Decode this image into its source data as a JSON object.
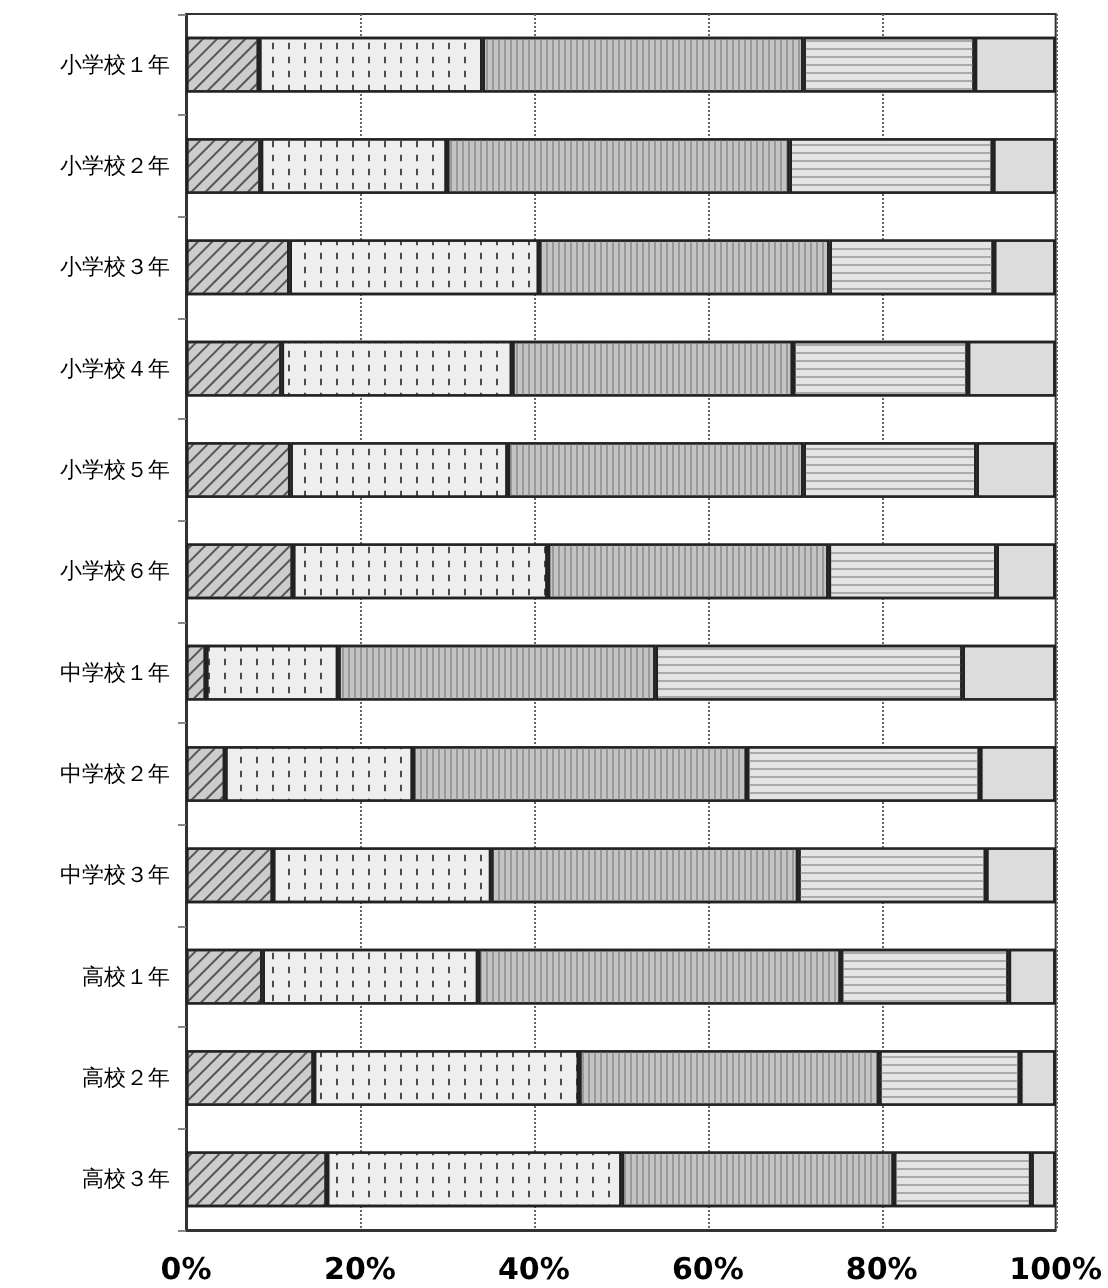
{
  "chart_data": {
    "type": "bar",
    "orientation": "horizontal",
    "stacked": true,
    "grid": "x",
    "categories": [
      "小学校１年",
      "小学校２年",
      "小学校３年",
      "小学校４年",
      "小学校５年",
      "小学校６年",
      "中学校１年",
      "中学校２年",
      "中学校３年",
      "高校１年",
      "高校２年",
      "高校３年"
    ],
    "xlim": [
      0,
      100
    ],
    "xticks": [
      {
        "value": 0,
        "label": "0%"
      },
      {
        "value": 20,
        "label": "20%"
      },
      {
        "value": 40,
        "label": "40%"
      },
      {
        "value": 60,
        "label": "60%"
      },
      {
        "value": 80,
        "label": "80%"
      },
      {
        "value": 100,
        "label": "100%"
      }
    ],
    "series": [
      {
        "color": "#cccccc",
        "values": [
          8.4,
          8.6,
          11.9,
          11.0,
          12.0,
          12.3,
          2.3,
          4.5,
          10.0,
          8.8,
          14.7,
          16.2
        ]
      },
      {
        "color": "#eeeeee",
        "values": [
          25.7,
          21.4,
          28.7,
          26.5,
          25.0,
          29.3,
          15.2,
          21.6,
          25.1,
          24.8,
          30.5,
          33.9
        ]
      },
      {
        "color": "#c4c4c4",
        "values": [
          36.9,
          39.4,
          33.4,
          32.3,
          34.0,
          32.3,
          36.5,
          38.4,
          35.3,
          41.7,
          34.5,
          31.3
        ]
      },
      {
        "color": "#e4e4e4",
        "values": [
          19.7,
          23.4,
          18.9,
          20.1,
          19.9,
          19.3,
          35.3,
          26.8,
          21.6,
          19.3,
          16.2,
          15.8
        ]
      },
      {
        "color": "#dcdcdc",
        "values": [
          9.3,
          7.2,
          7.1,
          10.1,
          9.1,
          6.8,
          10.7,
          8.7,
          8.0,
          5.4,
          4.1,
          2.8
        ]
      }
    ]
  }
}
